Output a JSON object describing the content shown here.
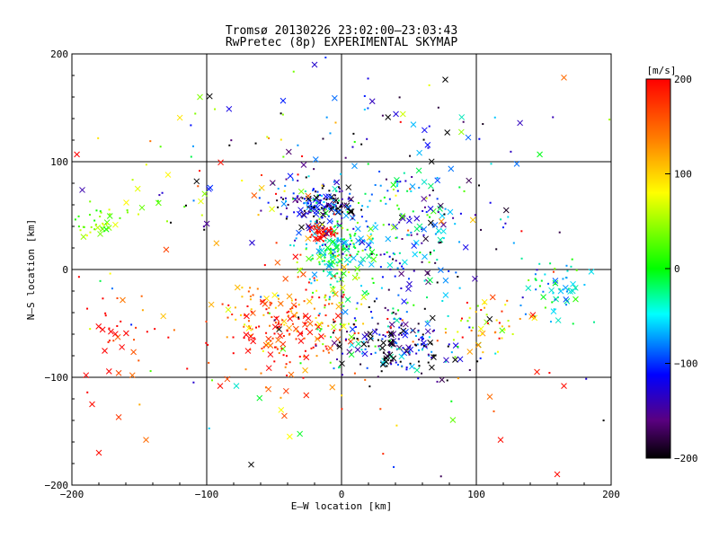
{
  "chart_data": {
    "type": "scatter",
    "title": "Tromsø 20130226 23:02:00–23:03:43",
    "subtitle": "RwPretec (8p) EXPERIMENTAL SKYMAP",
    "xlabel": "E–W location [km]",
    "ylabel": "N–S location [km]",
    "xlim": [
      -200,
      200
    ],
    "ylim": [
      -200,
      200
    ],
    "xticks": [
      "−200",
      "−100",
      "0",
      "100",
      "200"
    ],
    "yticks": [
      "−200",
      "−100",
      "0",
      "100",
      "200"
    ],
    "grid": true,
    "colorbar": {
      "label": "[m/s]",
      "range": [
        -200,
        200
      ],
      "ticks": [
        "200",
        "100",
        "0",
        "−100",
        "−200"
      ]
    },
    "clusters": [
      {
        "x": -15,
        "y": 60,
        "sx": 14,
        "sy": 9,
        "n": 180,
        "v": -140,
        "vs": 70
      },
      {
        "x": -5,
        "y": 20,
        "sx": 14,
        "sy": 12,
        "n": 160,
        "v": -20,
        "vs": 40
      },
      {
        "x": -14,
        "y": 33,
        "sx": 4,
        "sy": 3,
        "n": 40,
        "v": 200,
        "vs": 20
      },
      {
        "x": -40,
        "y": -50,
        "sx": 25,
        "sy": 25,
        "n": 220,
        "v": 170,
        "vs": 50
      },
      {
        "x": 40,
        "y": -70,
        "sx": 22,
        "sy": 14,
        "n": 200,
        "v": -150,
        "vs": 80
      },
      {
        "x": 50,
        "y": 20,
        "sx": 30,
        "sy": 30,
        "n": 120,
        "v": -100,
        "vs": 80
      },
      {
        "x": 40,
        "y": 60,
        "sx": 25,
        "sy": 20,
        "n": 70,
        "v": -60,
        "vs": 60
      },
      {
        "x": 0,
        "y": -30,
        "sx": 10,
        "sy": 25,
        "n": 60,
        "v": 60,
        "vs": 70
      },
      {
        "x": 160,
        "y": -20,
        "sx": 15,
        "sy": 15,
        "n": 60,
        "v": -40,
        "vs": 40
      },
      {
        "x": 110,
        "y": -50,
        "sx": 15,
        "sy": 15,
        "n": 50,
        "v": 110,
        "vs": 70
      },
      {
        "x": -185,
        "y": 45,
        "sx": 10,
        "sy": 8,
        "n": 35,
        "v": 30,
        "vs": 25
      },
      {
        "x": -160,
        "y": -60,
        "sx": 20,
        "sy": 25,
        "n": 40,
        "v": 180,
        "vs": 40
      },
      {
        "x": -150,
        "y": 60,
        "sx": 15,
        "sy": 10,
        "n": 12,
        "v": 60,
        "vs": 20
      },
      {
        "x": 30,
        "y": 130,
        "sx": 30,
        "sy": 25,
        "n": 40,
        "v": -150,
        "vs": 60
      },
      {
        "x": -60,
        "y": 90,
        "sx": 40,
        "sy": 30,
        "n": 60,
        "v": -20,
        "vs": 150
      },
      {
        "x": 120,
        "y": 50,
        "sx": 30,
        "sy": 30,
        "n": 20,
        "v": -140,
        "vs": 60
      },
      {
        "x": 0,
        "y": 0,
        "sx": 120,
        "sy": 120,
        "n": 160,
        "v": 0,
        "vs": 150
      }
    ],
    "outliers": [
      {
        "x": -20,
        "y": 190,
        "v": -130
      },
      {
        "x": 165,
        "y": 178,
        "v": 150
      },
      {
        "x": -105,
        "y": 160,
        "v": 40
      },
      {
        "x": 130,
        "y": 98,
        "v": -80
      },
      {
        "x": 145,
        "y": -95,
        "v": 190
      },
      {
        "x": 110,
        "y": -118,
        "v": 150
      },
      {
        "x": -180,
        "y": -170,
        "v": 195
      },
      {
        "x": -145,
        "y": -158,
        "v": 150
      },
      {
        "x": -185,
        "y": -125,
        "v": 195
      },
      {
        "x": 118,
        "y": -158,
        "v": 195
      },
      {
        "x": 165,
        "y": -108,
        "v": 195
      },
      {
        "x": 160,
        "y": -190,
        "v": 195
      },
      {
        "x": -90,
        "y": -108,
        "v": 195
      },
      {
        "x": -78,
        "y": -108,
        "v": -40
      }
    ]
  }
}
